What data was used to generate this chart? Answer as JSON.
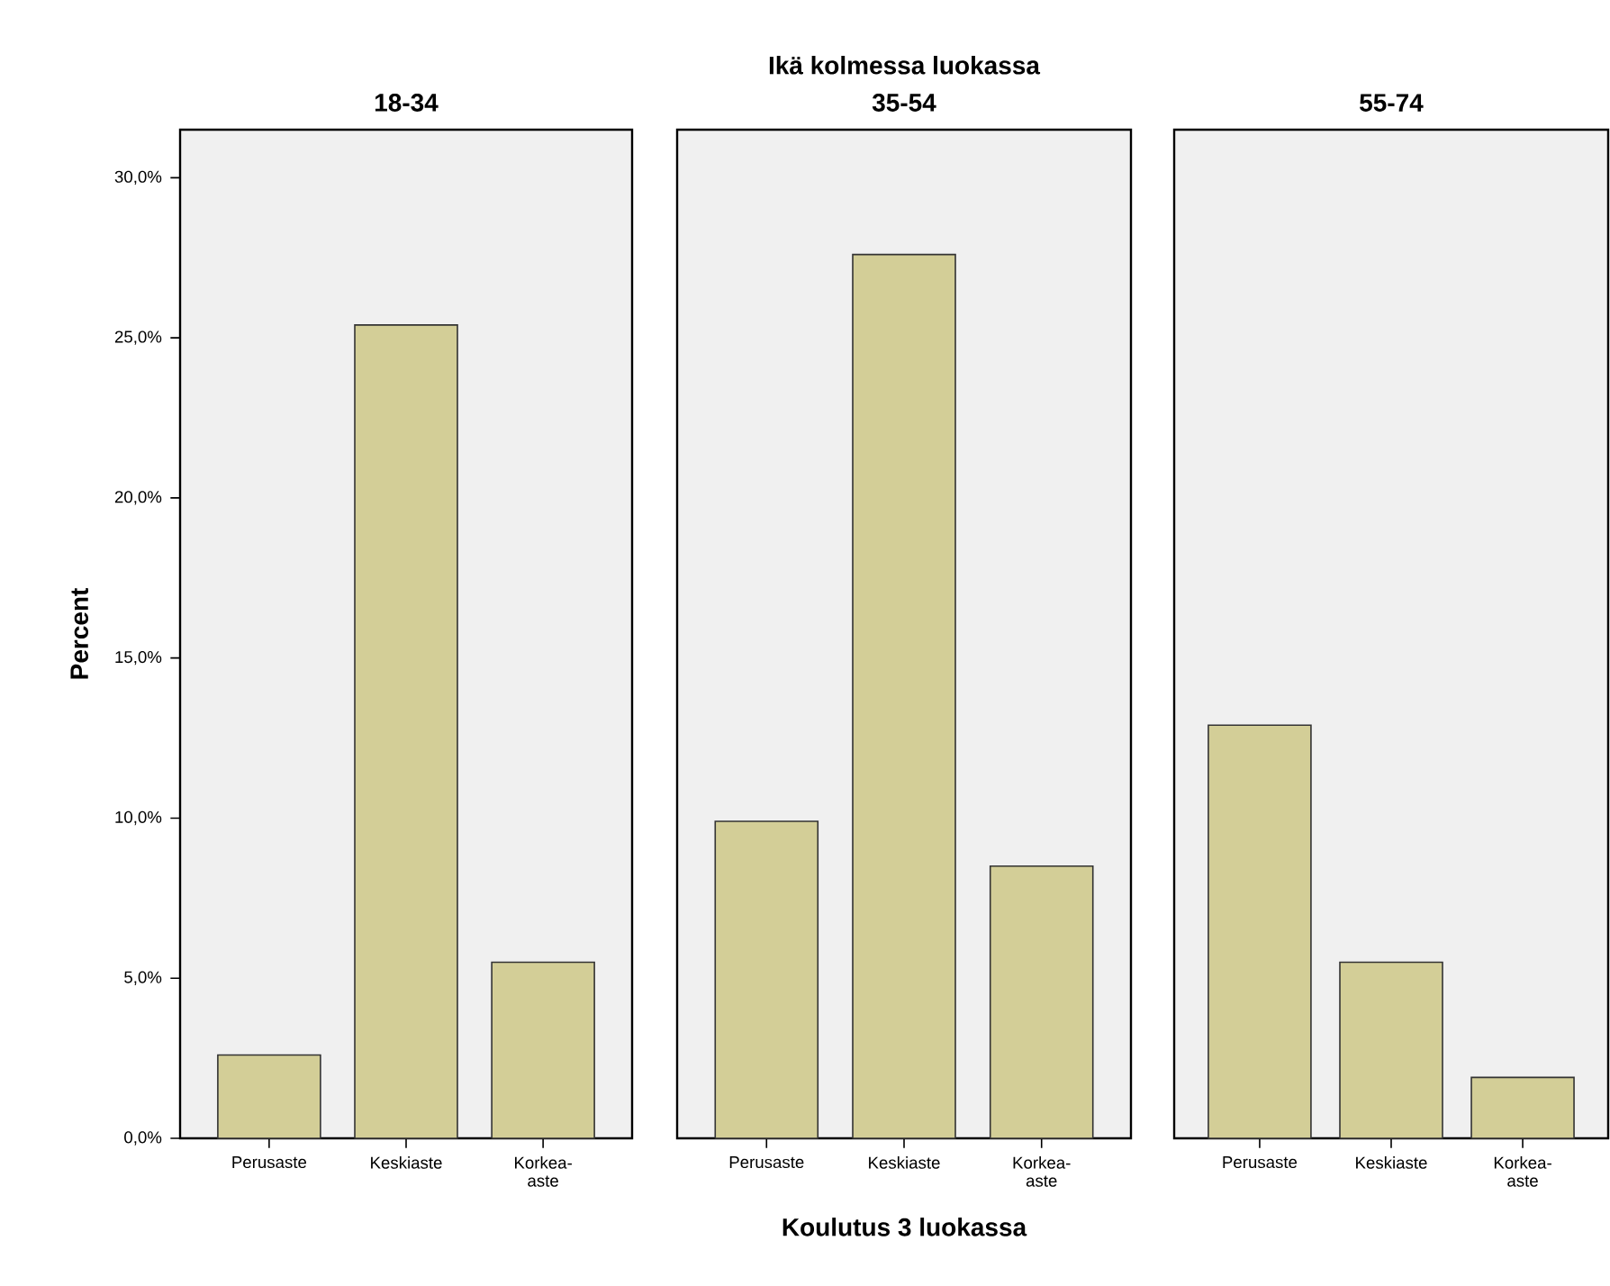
{
  "chart_data": [
    {
      "type": "bar",
      "title": "18-34",
      "ylabel": "Percent",
      "categories": [
        "Perusaste",
        "Keskiaste",
        "Korkea-aste"
      ],
      "values": [
        2.6,
        25.4,
        5.5
      ],
      "color": "#d3ce97",
      "ylim": [
        0,
        31.5
      ],
      "yticks": [
        {
          "value": 0,
          "label": "0,0%"
        },
        {
          "value": 5,
          "label": "5,0%"
        },
        {
          "value": 10,
          "label": "10,0%"
        },
        {
          "value": 15,
          "label": "15,0%"
        },
        {
          "value": 20,
          "label": "20,0%"
        },
        {
          "value": 25,
          "label": "25,0%"
        },
        {
          "value": 30,
          "label": "30,0%"
        }
      ]
    },
    {
      "type": "bar",
      "title": "35-54",
      "xlabel": "Koulutus 3 luokassa",
      "annotations": [
        "Ikä kolmessa luokassa"
      ],
      "categories": [
        "Perusaste",
        "Keskiaste",
        "Korkea-aste"
      ],
      "values": [
        9.9,
        27.6,
        8.5
      ],
      "color": "#d3ce97",
      "ylim": [
        0,
        31.5
      ],
      "tick_labels": "x"
    },
    {
      "type": "bar",
      "title": "55-74",
      "categories": [
        "Perusaste",
        "Keskiaste",
        "Korkea-aste"
      ],
      "values": [
        12.9,
        5.5,
        1.9
      ],
      "color": "#d3ce97",
      "ylim": [
        0,
        31.5
      ],
      "tick_labels": "x"
    }
  ]
}
